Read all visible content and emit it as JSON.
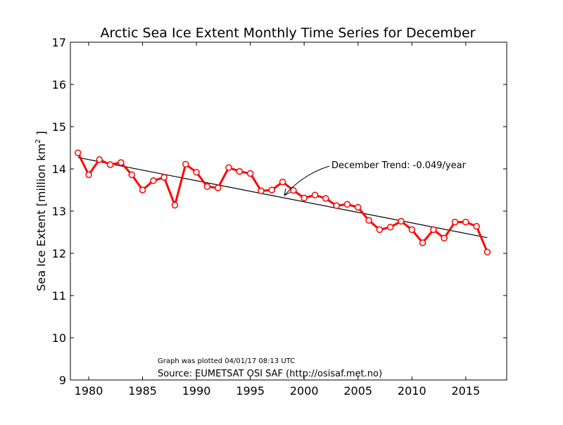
{
  "chart_data": {
    "type": "line",
    "title": "Arctic Sea Ice Extent Monthly Time Series for December",
    "ylabel_main": "Sea Ice Extent [million km",
    "ylabel_sup": "2",
    "ylabel_end": " ]",
    "xlim": [
      1978.3,
      2018.8
    ],
    "ylim": [
      9,
      17
    ],
    "x_ticks": [
      1980,
      1985,
      1990,
      1995,
      2000,
      2005,
      2010,
      2015
    ],
    "y_ticks": [
      9,
      10,
      11,
      12,
      13,
      14,
      15,
      16,
      17
    ],
    "grid": false,
    "series": [
      {
        "color": "#ff0000",
        "marker": "circle",
        "x": [
          1979,
          1980,
          1981,
          1982,
          1983,
          1984,
          1985,
          1986,
          1987,
          1988,
          1989,
          1990,
          1991,
          1992,
          1993,
          1994,
          1995,
          1996,
          1997,
          1998,
          1999,
          2000,
          2001,
          2002,
          2003,
          2004,
          2005,
          2006,
          2007,
          2008,
          2009,
          2010,
          2011,
          2012,
          2013,
          2014,
          2015,
          2016,
          2017
        ],
        "y": [
          14.38,
          13.86,
          14.22,
          14.1,
          14.15,
          13.86,
          13.5,
          13.72,
          13.8,
          13.14,
          14.11,
          13.92,
          13.58,
          13.55,
          14.03,
          13.94,
          13.89,
          13.48,
          13.5,
          13.69,
          13.49,
          13.31,
          13.38,
          13.3,
          13.13,
          13.16,
          13.09,
          12.78,
          12.56,
          12.62,
          12.76,
          12.56,
          12.25,
          12.56,
          12.36,
          12.74,
          12.74,
          12.64,
          12.03
        ]
      }
    ],
    "trend": {
      "color": "#000000",
      "x": [
        1979,
        2017
      ],
      "y": [
        14.27,
        12.37
      ],
      "label": "December Trend: -0.049/year"
    },
    "annotations": {
      "plotted": "Graph was plotted 04/01/17 08:13 UTC",
      "source": "Source: EUMETSAT OSI SAF (http://osisaf.met.no)"
    }
  }
}
